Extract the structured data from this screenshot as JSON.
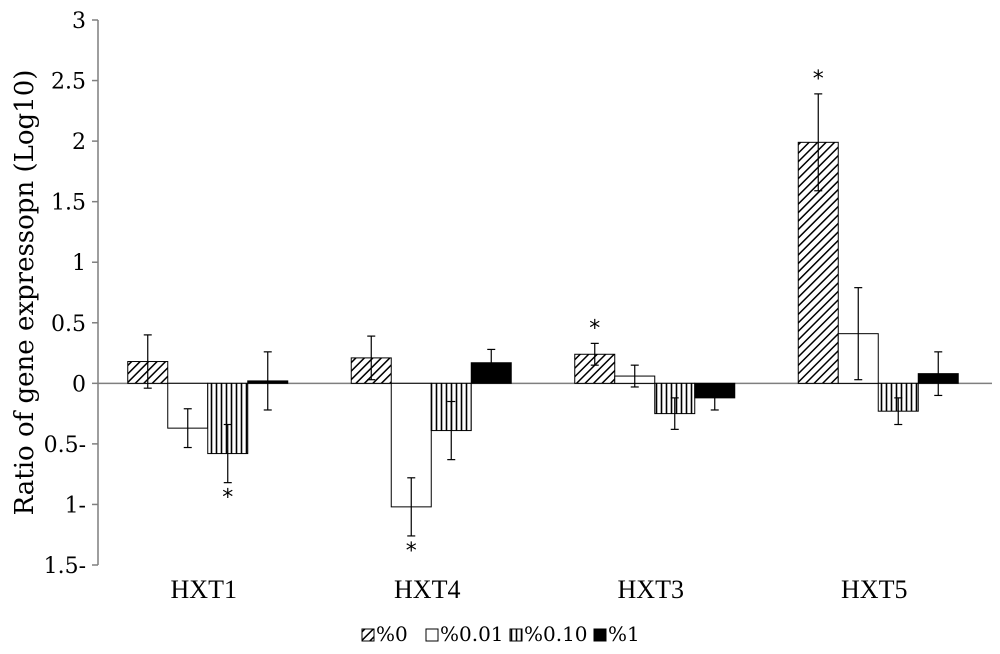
{
  "chart_data": {
    "type": "bar",
    "ylabel": "Ratio of gene expressopn (Log10)",
    "xlabel": "",
    "ylim": [
      -1.5,
      3
    ],
    "yticks": [
      3,
      2.5,
      2,
      1.5,
      1,
      0.5,
      0
    ],
    "yticks_negative": [
      -0.5,
      -1,
      -1.5
    ],
    "ytick_labels": [
      "3",
      "2.5",
      "2",
      "1.5",
      "1",
      "0.5",
      "0",
      "0.5-",
      "1-",
      "1.5-"
    ],
    "categories": [
      "HXT1",
      "HXT4",
      "HXT3",
      "HXT5"
    ],
    "series": [
      {
        "name": "%0",
        "pattern": "diagonal",
        "values": [
          0.18,
          0.21,
          0.24,
          1.99
        ],
        "errors": [
          0.22,
          0.18,
          0.09,
          0.4
        ]
      },
      {
        "name": "%0.01",
        "pattern": "white",
        "values": [
          -0.37,
          -1.02,
          0.06,
          0.41
        ],
        "errors": [
          0.16,
          0.24,
          0.09,
          0.38
        ]
      },
      {
        "name": "%0.10",
        "pattern": "vertical",
        "values": [
          -0.58,
          -0.39,
          -0.25,
          -0.23
        ],
        "errors": [
          0.24,
          0.24,
          0.13,
          0.11
        ]
      },
      {
        "name": "%1",
        "pattern": "black",
        "values": [
          0.02,
          0.17,
          -0.12,
          0.08
        ],
        "errors": [
          0.24,
          0.11,
          0.1,
          0.18
        ]
      }
    ],
    "significance": [
      {
        "category": "HXT1",
        "series": "%0.10",
        "label": "*"
      },
      {
        "category": "HXT4",
        "series": "%0.01",
        "label": "*"
      },
      {
        "category": "HXT3",
        "series": "%0",
        "label": "*"
      },
      {
        "category": "HXT5",
        "series": "%0",
        "label": "*"
      }
    ],
    "legend_position": "bottom",
    "grid": false
  }
}
